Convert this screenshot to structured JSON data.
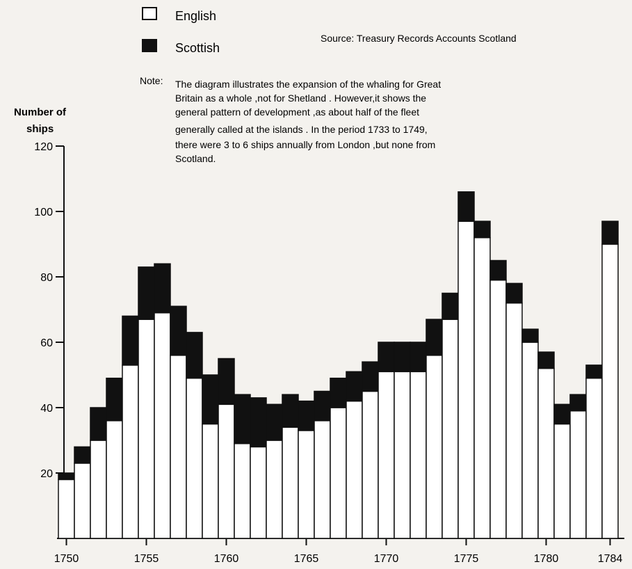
{
  "chart_data": {
    "type": "bar",
    "stacked": true,
    "categories": [
      "1750",
      "1751",
      "1752",
      "1753",
      "1754",
      "1755",
      "1756",
      "1757",
      "1758",
      "1759",
      "1760",
      "1761",
      "1762",
      "1763",
      "1764",
      "1765",
      "1766",
      "1767",
      "1768",
      "1769",
      "1770",
      "1771",
      "1772",
      "1773",
      "1774",
      "1775",
      "1776",
      "1777",
      "1778",
      "1779",
      "1780",
      "1781",
      "1782",
      "1783",
      "1784"
    ],
    "series": [
      {
        "name": "English",
        "color": "#ffffff",
        "values": [
          18,
          23,
          30,
          36,
          53,
          67,
          69,
          56,
          49,
          35,
          41,
          29,
          28,
          30,
          34,
          33,
          36,
          40,
          42,
          45,
          51,
          51,
          51,
          56,
          67,
          97,
          92,
          79,
          72,
          60,
          52,
          35,
          39,
          49,
          90
        ]
      },
      {
        "name": "Scottish",
        "color": "#111111",
        "values": [
          2,
          5,
          10,
          13,
          15,
          16,
          15,
          15,
          14,
          15,
          14,
          15,
          15,
          11,
          10,
          9,
          9,
          9,
          9,
          9,
          9,
          9,
          9,
          11,
          8,
          9,
          5,
          6,
          6,
          4,
          5,
          6,
          5,
          4,
          7
        ]
      }
    ],
    "ylabel": "Number of ships",
    "ylim": [
      0,
      120
    ],
    "yticks": [
      20,
      40,
      60,
      80,
      100,
      120
    ],
    "xtick_labels": [
      "1750",
      "1755",
      "1760",
      "1765",
      "1770",
      "1775",
      "1780",
      "1784"
    ],
    "legend_position": "top-left",
    "grid": false
  },
  "source": "Source: Treasury Records Accounts Scotland",
  "note": {
    "prefix": "Note:",
    "lines": [
      "The diagram illustrates the expansion of the whaling for Great",
      "Britain as a whole ,not for Shetland . However,it shows the",
      "general pattern of development ,as about half of the fleet",
      "generally called at the islands . In the period 1733 to 1749,",
      "there were 3 to 6 ships annually from London ,but none from",
      "Scotland."
    ]
  }
}
